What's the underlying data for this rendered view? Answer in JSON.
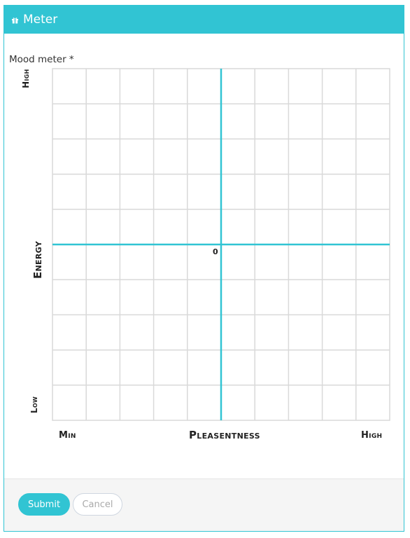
{
  "header": {
    "icon": "gift-icon",
    "title": "Meter",
    "color": "#31c4d3"
  },
  "field": {
    "label": "Mood meter *"
  },
  "meter": {
    "y_axis": {
      "label": "Energy",
      "high": "High",
      "low": "Low"
    },
    "x_axis": {
      "label": "Pleasentness",
      "min": "Min",
      "high": "High"
    },
    "origin_label": "0",
    "columns": 10,
    "rows": 10,
    "axis_color": "#31c4d3",
    "grid_color": "#d9d9d9"
  },
  "footer": {
    "submit_label": "Submit",
    "cancel_label": "Cancel"
  }
}
